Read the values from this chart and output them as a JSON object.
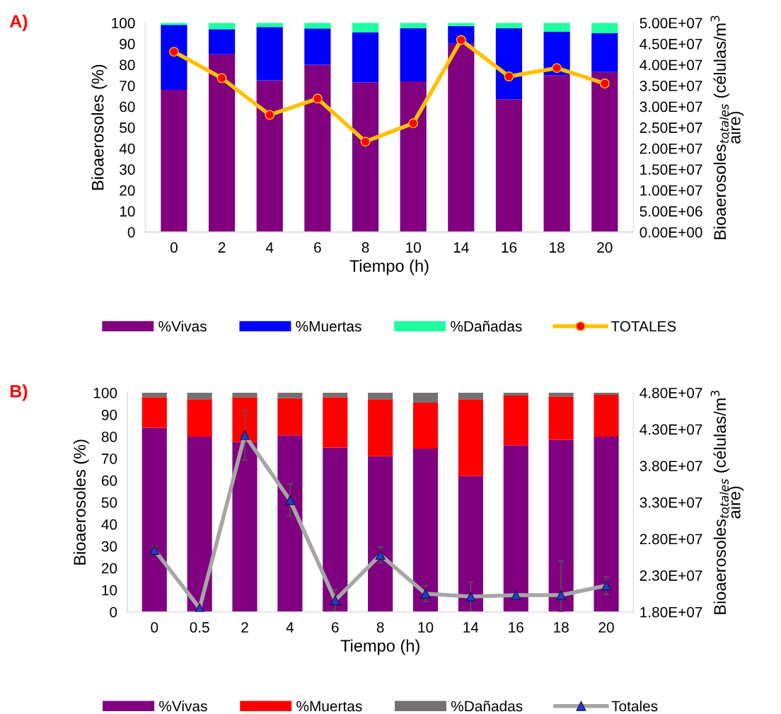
{
  "chart_data": [
    {
      "type": "bar",
      "title": "A)",
      "stacked": true,
      "xlabel": "Tiempo (h)",
      "ylabel": "Bioaerosoles (%)",
      "y2label": "Bioaerosoles$_{totales}$ (células/m$^{3}$\naire)",
      "categories": [
        "0",
        "2",
        "4",
        "6",
        "8",
        "10",
        "14",
        "16",
        "18",
        "20"
      ],
      "ylim": [
        0,
        100
      ],
      "yticks": [
        0,
        10,
        20,
        30,
        40,
        50,
        60,
        70,
        80,
        90,
        100
      ],
      "y2lim": [
        0,
        50000000
      ],
      "y2ticks": [
        {
          "value": 0,
          "label": "0.00E+00"
        },
        {
          "value": 5000000,
          "label": "5.00E+06"
        },
        {
          "value": 10000000,
          "label": "1.00E+07"
        },
        {
          "value": 15000000,
          "label": "1.50E+07"
        },
        {
          "value": 20000000,
          "label": "2.00E+07"
        },
        {
          "value": 25000000,
          "label": "2.50E+07"
        },
        {
          "value": 30000000,
          "label": "3.00E+07"
        },
        {
          "value": 35000000,
          "label": "3.50E+07"
        },
        {
          "value": 40000000,
          "label": "4.00E+07"
        },
        {
          "value": 45000000,
          "label": "4.50E+07"
        },
        {
          "value": 50000000,
          "label": "5.00E+07"
        }
      ],
      "grid": false,
      "legend": "bottom",
      "series": [
        {
          "name": "%Vivas",
          "color": "#800080",
          "values": [
            68,
            85,
            72.5,
            80,
            71.5,
            72,
            90,
            63.5,
            75,
            76.5
          ]
        },
        {
          "name": "%Muertas",
          "color": "#0000ff",
          "values": [
            31,
            12,
            25.5,
            17.3,
            24,
            25.5,
            8.5,
            34,
            20.7,
            18.5
          ]
        },
        {
          "name": "%Dañadas",
          "color": "#1dffa0",
          "values": [
            1,
            3,
            2,
            2.7,
            4.5,
            2.5,
            1.5,
            2.5,
            4.3,
            5
          ]
        },
        {
          "name": "TOTALES",
          "type": "line",
          "axis": "y2",
          "color": "#ffc000",
          "marker": "circle",
          "values": [
            43100000,
            36800000,
            28000000,
            31900000,
            21600000,
            26000000,
            45900000,
            37200000,
            39200000,
            35500000
          ]
        }
      ]
    },
    {
      "type": "bar",
      "title": "B)",
      "stacked": true,
      "xlabel": "Tiempo (h)",
      "ylabel": "Bioaerosoles (%)",
      "y2label": "Bioaerosoles$_{totales}$ (células/m$^{3}$\naire)",
      "categories": [
        "0",
        "0.5",
        "2",
        "4",
        "6",
        "8",
        "10",
        "14",
        "16",
        "18",
        "20"
      ],
      "ylim": [
        0,
        100
      ],
      "yticks": [
        0,
        10,
        20,
        30,
        40,
        50,
        60,
        70,
        80,
        90,
        100
      ],
      "y2lim": [
        18000000,
        48000000
      ],
      "y2ticks": [
        {
          "value": 18000000,
          "label": "1.80E+07"
        },
        {
          "value": 23000000,
          "label": "2.30E+07"
        },
        {
          "value": 28000000,
          "label": "2.80E+07"
        },
        {
          "value": 33000000,
          "label": "3.30E+07"
        },
        {
          "value": 38000000,
          "label": "3.80E+07"
        },
        {
          "value": 43000000,
          "label": "4.30E+07"
        },
        {
          "value": 48000000,
          "label": "4.80E+07"
        }
      ],
      "grid": false,
      "legend": "bottom",
      "series": [
        {
          "name": "%Vivas",
          "color": "#800080",
          "values": [
            84,
            80,
            77.5,
            80.5,
            75,
            71,
            74.5,
            62,
            76,
            78.5,
            80
          ]
        },
        {
          "name": "%Muertas",
          "color": "#ff0000",
          "values": [
            14,
            17,
            20.5,
            17,
            23,
            26,
            21,
            35,
            22.7,
            19.8,
            19
          ]
        },
        {
          "name": "%Dañadas",
          "color": "#767171",
          "values": [
            2,
            3,
            2,
            2.5,
            2,
            3,
            4.5,
            3,
            1.3,
            1.7,
            1
          ]
        },
        {
          "name": "Totales",
          "type": "line",
          "axis": "y2",
          "color": "#a6a6a6",
          "marker": "triangle",
          "values": [
            26500000,
            18500000,
            42200000,
            33300000,
            19600000,
            25800000,
            20500000,
            20100000,
            20300000,
            20300000,
            21600000
          ],
          "errors": [
            500000,
            null,
            3400000,
            2200000,
            1500000,
            1100000,
            1100000,
            2000000,
            null,
            [
              18000000,
              25000000
            ],
            1200000
          ]
        }
      ]
    }
  ]
}
